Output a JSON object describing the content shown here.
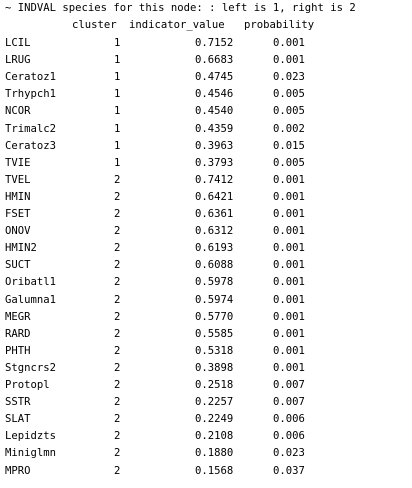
{
  "console": {
    "header_line": "~ INDVAL species for this node: : left is 1, right is 2",
    "columns": [
      "cluster",
      "indicator_value",
      "probability"
    ],
    "rows": [
      {
        "name": "LCIL",
        "cluster": "1",
        "indicator_value": "0.7152",
        "probability": "0.001"
      },
      {
        "name": "LRUG",
        "cluster": "1",
        "indicator_value": "0.6683",
        "probability": "0.001"
      },
      {
        "name": "Ceratoz1",
        "cluster": "1",
        "indicator_value": "0.4745",
        "probability": "0.023"
      },
      {
        "name": "Trhypch1",
        "cluster": "1",
        "indicator_value": "0.4546",
        "probability": "0.005"
      },
      {
        "name": "NCOR",
        "cluster": "1",
        "indicator_value": "0.4540",
        "probability": "0.005"
      },
      {
        "name": "Trimalc2",
        "cluster": "1",
        "indicator_value": "0.4359",
        "probability": "0.002"
      },
      {
        "name": "Ceratoz3",
        "cluster": "1",
        "indicator_value": "0.3963",
        "probability": "0.015"
      },
      {
        "name": "TVIE",
        "cluster": "1",
        "indicator_value": "0.3793",
        "probability": "0.005"
      },
      {
        "name": "TVEL",
        "cluster": "2",
        "indicator_value": "0.7412",
        "probability": "0.001"
      },
      {
        "name": "HMIN",
        "cluster": "2",
        "indicator_value": "0.6421",
        "probability": "0.001"
      },
      {
        "name": "FSET",
        "cluster": "2",
        "indicator_value": "0.6361",
        "probability": "0.001"
      },
      {
        "name": "ONOV",
        "cluster": "2",
        "indicator_value": "0.6312",
        "probability": "0.001"
      },
      {
        "name": "HMIN2",
        "cluster": "2",
        "indicator_value": "0.6193",
        "probability": "0.001"
      },
      {
        "name": "SUCT",
        "cluster": "2",
        "indicator_value": "0.6088",
        "probability": "0.001"
      },
      {
        "name": "Oribatl1",
        "cluster": "2",
        "indicator_value": "0.5978",
        "probability": "0.001"
      },
      {
        "name": "Galumna1",
        "cluster": "2",
        "indicator_value": "0.5974",
        "probability": "0.001"
      },
      {
        "name": "MEGR",
        "cluster": "2",
        "indicator_value": "0.5770",
        "probability": "0.001"
      },
      {
        "name": "RARD",
        "cluster": "2",
        "indicator_value": "0.5585",
        "probability": "0.001"
      },
      {
        "name": "PHTH",
        "cluster": "2",
        "indicator_value": "0.5318",
        "probability": "0.001"
      },
      {
        "name": "Stgncrs2",
        "cluster": "2",
        "indicator_value": "0.3898",
        "probability": "0.001"
      },
      {
        "name": "Protopl",
        "cluster": "2",
        "indicator_value": "0.2518",
        "probability": "0.007"
      },
      {
        "name": "SSTR",
        "cluster": "2",
        "indicator_value": "0.2257",
        "probability": "0.007"
      },
      {
        "name": "SLAT",
        "cluster": "2",
        "indicator_value": "0.2249",
        "probability": "0.006"
      },
      {
        "name": "Lepidzts",
        "cluster": "2",
        "indicator_value": "0.2108",
        "probability": "0.006"
      },
      {
        "name": "Miniglmn",
        "cluster": "2",
        "indicator_value": "0.1880",
        "probability": "0.023"
      },
      {
        "name": "MPRO",
        "cluster": "2",
        "indicator_value": "0.1568",
        "probability": "0.037"
      }
    ]
  }
}
